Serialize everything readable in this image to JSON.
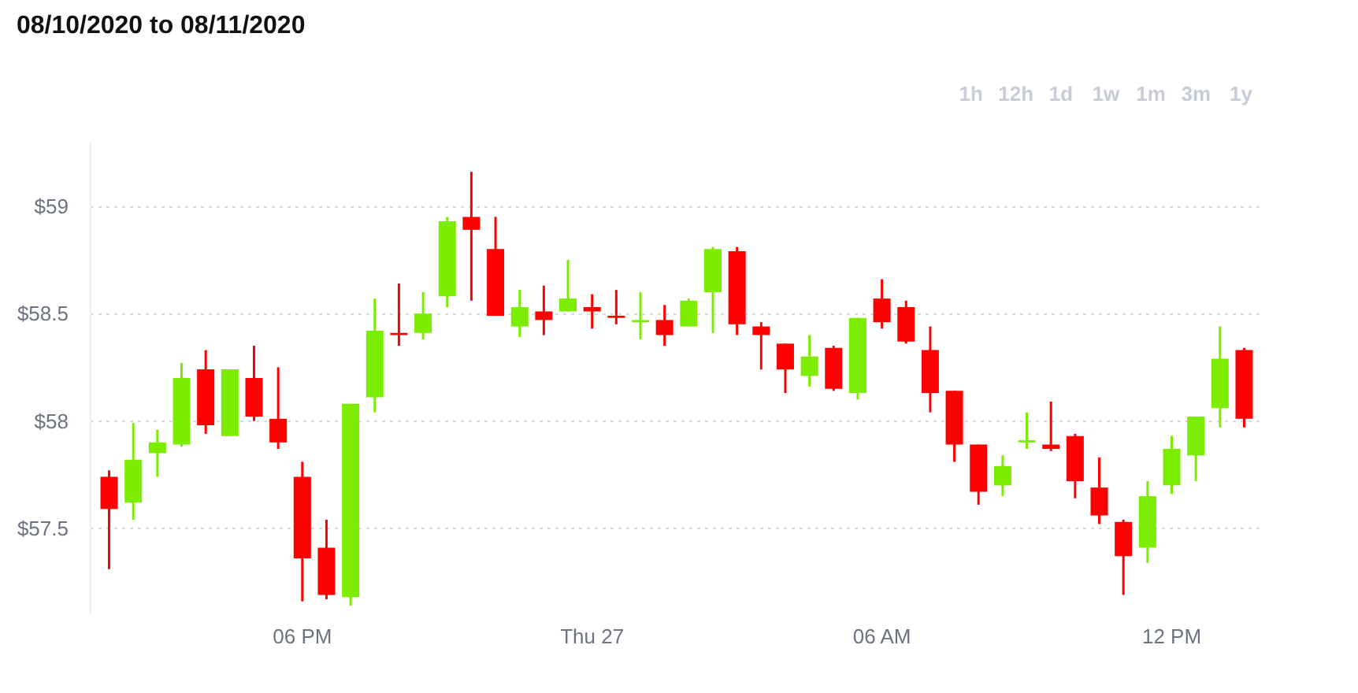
{
  "chart_data": {
    "type": "candlestick",
    "title": "08/10/2020 to 08/11/2020",
    "annotations": [
      "1h",
      "12h",
      "1d",
      "1w",
      "1m",
      "3m",
      "1y"
    ],
    "categories": [
      null,
      null,
      null,
      null,
      null,
      null,
      null,
      null,
      "06 PM",
      null,
      null,
      null,
      null,
      null,
      null,
      null,
      null,
      null,
      null,
      null,
      "Thu 27",
      null,
      null,
      null,
      null,
      null,
      null,
      null,
      null,
      null,
      null,
      null,
      "06 AM",
      null,
      null,
      null,
      null,
      null,
      null,
      null,
      null,
      null,
      null,
      null,
      "12 PM",
      null,
      null,
      null
    ],
    "ohlc": [
      [
        57.74,
        57.77,
        57.31,
        57.59
      ],
      [
        57.62,
        57.99,
        57.54,
        57.82
      ],
      [
        57.85,
        57.96,
        57.74,
        57.9
      ],
      [
        57.89,
        58.27,
        57.88,
        58.2
      ],
      [
        58.24,
        58.33,
        57.94,
        57.98
      ],
      [
        57.93,
        58.24,
        57.93,
        58.24
      ],
      [
        58.2,
        58.35,
        58.0,
        58.02
      ],
      [
        58.01,
        58.25,
        57.87,
        57.9
      ],
      [
        57.74,
        57.81,
        57.16,
        57.36
      ],
      [
        57.41,
        57.54,
        57.17,
        57.19
      ],
      [
        57.18,
        58.08,
        57.14,
        58.08
      ],
      [
        58.11,
        58.57,
        58.04,
        58.42
      ],
      [
        58.41,
        58.64,
        58.35,
        58.4
      ],
      [
        58.41,
        58.6,
        58.38,
        58.5
      ],
      [
        58.58,
        58.95,
        58.53,
        58.93
      ],
      [
        58.95,
        59.16,
        58.56,
        58.89
      ],
      [
        58.8,
        58.95,
        58.49,
        58.49
      ],
      [
        58.44,
        58.61,
        58.39,
        58.53
      ],
      [
        58.51,
        58.63,
        58.4,
        58.47
      ],
      [
        58.51,
        58.75,
        58.51,
        58.57
      ],
      [
        58.53,
        58.59,
        58.43,
        58.51
      ],
      [
        58.49,
        58.61,
        58.45,
        58.48
      ],
      [
        58.46,
        58.6,
        58.38,
        58.47
      ],
      [
        58.47,
        58.54,
        58.35,
        58.4
      ],
      [
        58.44,
        58.57,
        58.44,
        58.56
      ],
      [
        58.6,
        58.81,
        58.41,
        58.8
      ],
      [
        58.79,
        58.81,
        58.4,
        58.45
      ],
      [
        58.44,
        58.46,
        58.24,
        58.4
      ],
      [
        58.36,
        58.36,
        58.13,
        58.24
      ],
      [
        58.21,
        58.4,
        58.16,
        58.3
      ],
      [
        58.34,
        58.35,
        58.14,
        58.15
      ],
      [
        58.13,
        58.48,
        58.1,
        58.48
      ],
      [
        58.57,
        58.66,
        58.43,
        58.46
      ],
      [
        58.53,
        58.56,
        58.36,
        58.37
      ],
      [
        58.33,
        58.44,
        58.04,
        58.13
      ],
      [
        58.14,
        58.14,
        57.81,
        57.89
      ],
      [
        57.89,
        57.89,
        57.61,
        57.67
      ],
      [
        57.7,
        57.84,
        57.65,
        57.79
      ],
      [
        57.9,
        58.04,
        57.87,
        57.91
      ],
      [
        57.89,
        58.09,
        57.86,
        57.87
      ],
      [
        57.93,
        57.94,
        57.64,
        57.72
      ],
      [
        57.69,
        57.83,
        57.52,
        57.56
      ],
      [
        57.53,
        57.54,
        57.19,
        57.37
      ],
      [
        57.41,
        57.72,
        57.34,
        57.65
      ],
      [
        57.7,
        57.93,
        57.66,
        57.87
      ],
      [
        57.84,
        58.02,
        57.72,
        58.02
      ],
      [
        58.06,
        58.44,
        57.97,
        58.29
      ],
      [
        58.33,
        58.34,
        57.97,
        58.01
      ]
    ],
    "colors": [
      "#ff0000",
      "#7ced00",
      "#7ced00",
      "#7ced00",
      "#ff0000",
      "#7ced00",
      "#ff0000",
      "#ff0000",
      "#ff0000",
      "#ff0000",
      "#7ced00",
      "#7ced00",
      "#ff0000",
      "#7ced00",
      "#7ced00",
      "#ff0000",
      "#ff0000",
      "#7ced00",
      "#ff0000",
      "#7ced00",
      "#ff0000",
      "#ff0000",
      "#7ced00",
      "#ff0000",
      "#7ced00",
      "#7ced00",
      "#ff0000",
      "#ff0000",
      "#ff0000",
      "#7ced00",
      "#ff0000",
      "#7ced00",
      "#ff0000",
      "#ff0000",
      "#ff0000",
      "#ff0000",
      "#ff0000",
      "#7ced00",
      "#7ced00",
      "#ff0000",
      "#ff0000",
      "#ff0000",
      "#ff0000",
      "#7ced00",
      "#7ced00",
      "#7ced00",
      "#7ced00",
      "#ff0000"
    ],
    "ylim": [
      57.1,
      59.3
    ],
    "yticks": [
      {
        "value": 57.5,
        "label": "$57.5"
      },
      {
        "value": 58,
        "label": "$58"
      },
      {
        "value": 58.5,
        "label": "$58.5"
      },
      {
        "value": 59,
        "label": "$59"
      }
    ],
    "grid": "y"
  }
}
